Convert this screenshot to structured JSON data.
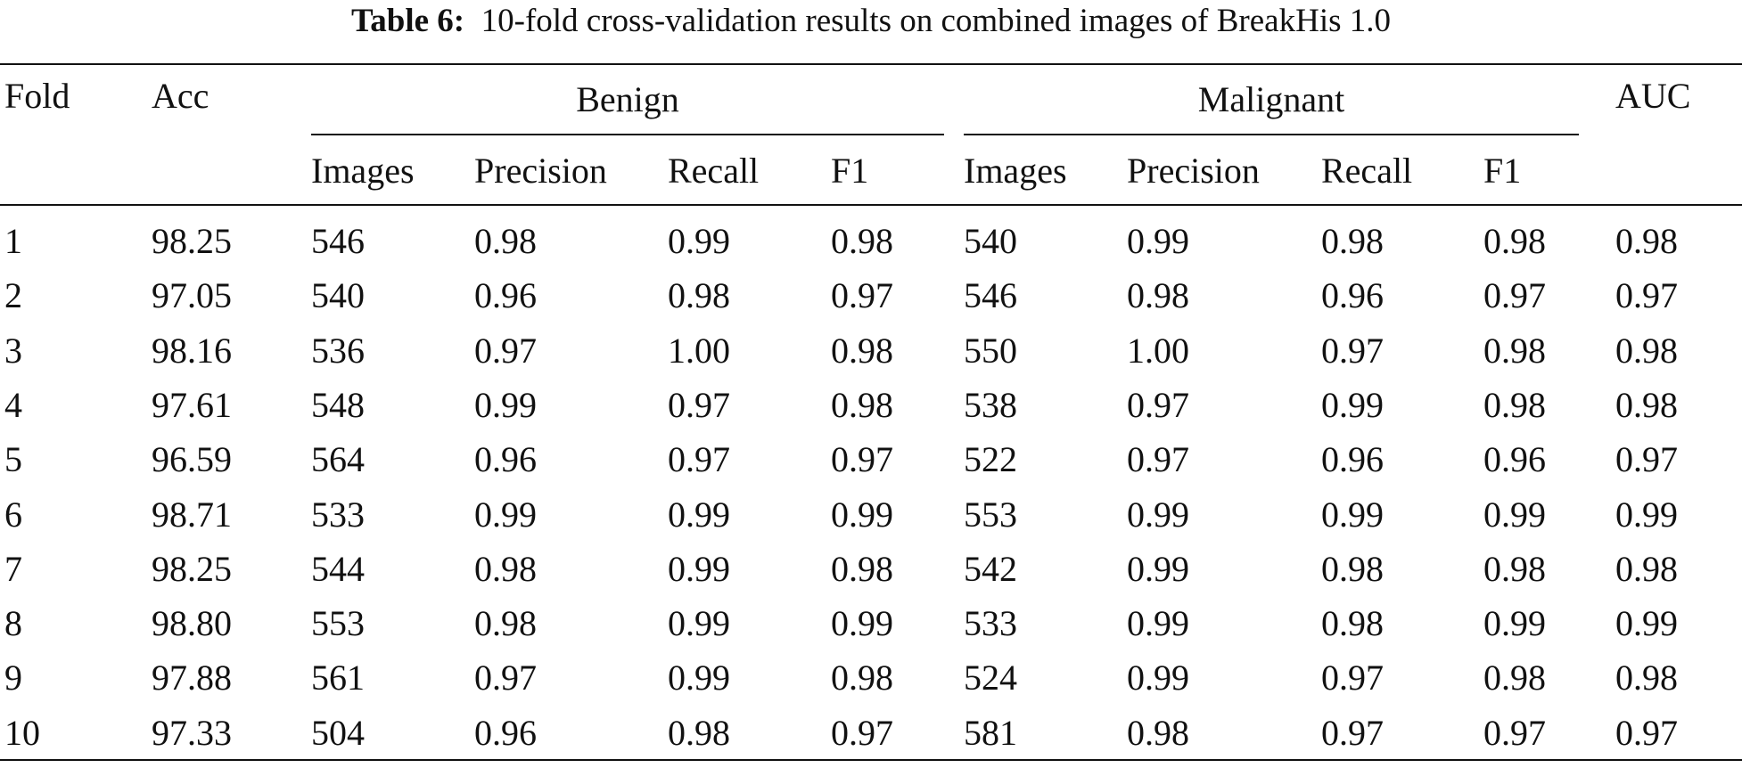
{
  "caption": {
    "label": "Table 6:",
    "text": "10-fold cross-validation results on combined images of BreakHis 1.0"
  },
  "table": {
    "header": {
      "fold": "Fold",
      "acc": "Acc",
      "auc": "AUC",
      "benign_group": "Benign",
      "malignant_group": "Malignant",
      "sub": [
        "Images",
        "Precision",
        "Recall",
        "F1"
      ]
    },
    "rows": [
      [
        "1",
        "98.25",
        "546",
        "0.98",
        "0.99",
        "0.98",
        "540",
        "0.99",
        "0.98",
        "0.98",
        "0.98"
      ],
      [
        "2",
        "97.05",
        "540",
        "0.96",
        "0.98",
        "0.97",
        "546",
        "0.98",
        "0.96",
        "0.97",
        "0.97"
      ],
      [
        "3",
        "98.16",
        "536",
        "0.97",
        "1.00",
        "0.98",
        "550",
        "1.00",
        "0.97",
        "0.98",
        "0.98"
      ],
      [
        "4",
        "97.61",
        "548",
        "0.99",
        "0.97",
        "0.98",
        "538",
        "0.97",
        "0.99",
        "0.98",
        "0.98"
      ],
      [
        "5",
        "96.59",
        "564",
        "0.96",
        "0.97",
        "0.97",
        "522",
        "0.97",
        "0.96",
        "0.96",
        "0.97"
      ],
      [
        "6",
        "98.71",
        "533",
        "0.99",
        "0.99",
        "0.99",
        "553",
        "0.99",
        "0.99",
        "0.99",
        "0.99"
      ],
      [
        "7",
        "98.25",
        "544",
        "0.98",
        "0.99",
        "0.98",
        "542",
        "0.99",
        "0.98",
        "0.98",
        "0.98"
      ],
      [
        "8",
        "98.80",
        "553",
        "0.98",
        "0.99",
        "0.99",
        "533",
        "0.99",
        "0.98",
        "0.99",
        "0.99"
      ],
      [
        "9",
        "97.88",
        "561",
        "0.97",
        "0.99",
        "0.98",
        "524",
        "0.99",
        "0.97",
        "0.98",
        "0.98"
      ],
      [
        "10",
        "97.33",
        "504",
        "0.96",
        "0.98",
        "0.97",
        "581",
        "0.98",
        "0.97",
        "0.97",
        "0.97"
      ]
    ]
  }
}
